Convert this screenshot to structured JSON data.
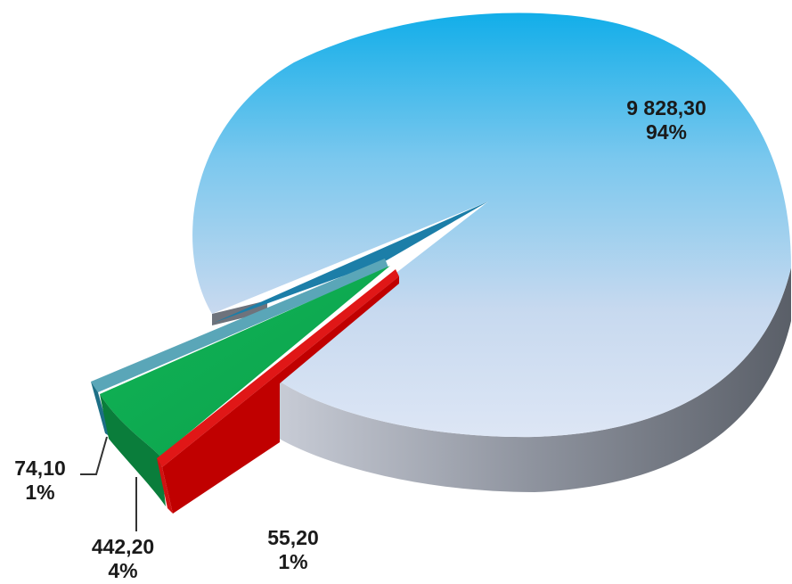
{
  "chart_data": {
    "type": "pie",
    "style": "3d-exploded",
    "slices": [
      {
        "value": 9828.3,
        "value_label": "9 828,30",
        "percent_label": "94%",
        "color": "#5bbcec"
      },
      {
        "value": 74.1,
        "value_label": "74,10",
        "percent_label": "1%",
        "color": "#1d7fa6"
      },
      {
        "value": 442.2,
        "value_label": "442,20",
        "percent_label": "4%",
        "color": "#0aa84f"
      },
      {
        "value": 55.2,
        "value_label": "55,20",
        "percent_label": "1%",
        "color": "#e31b1b"
      }
    ],
    "legend": false
  }
}
